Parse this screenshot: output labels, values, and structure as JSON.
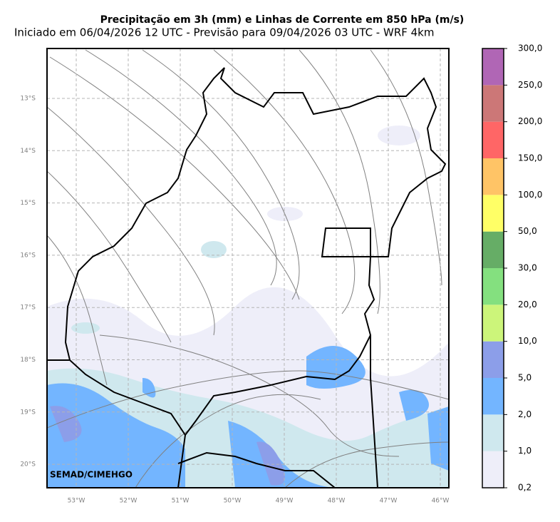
{
  "title": "Precipitação em 3h (mm) e Linhas de Corrente em 850 hPa (m/s)",
  "subtitle": "Iniciado em 06/04/2026 12 UTC - Previsão para 09/04/2026 03 UTC - WRF 4km",
  "map": {
    "lat_labels": [
      "13°S",
      "14°S",
      "15°S",
      "16°S",
      "17°S",
      "18°S",
      "19°S",
      "20°S"
    ],
    "lon_labels": [
      "53°W",
      "52°W",
      "51°W",
      "50°W",
      "49°W",
      "48°W",
      "47°W",
      "46°W"
    ],
    "watermark": "SEMAD/CIMEHGO"
  },
  "colorbar": {
    "levels": [
      "0,2",
      "1,0",
      "2,0",
      "5,0",
      "10,0",
      "20,0",
      "30,0",
      "50,0",
      "100,0",
      "150,0",
      "200,0",
      "250,0",
      "300,0"
    ],
    "colors": [
      "#eeeef9",
      "#cfe8ee",
      "#73b5ff",
      "#8c9ee9",
      "#ccf57a",
      "#84e07f",
      "#66ad66",
      "#ffff66",
      "#ffc466",
      "#ff6666",
      "#cc7777",
      "#b066b5"
    ]
  }
}
